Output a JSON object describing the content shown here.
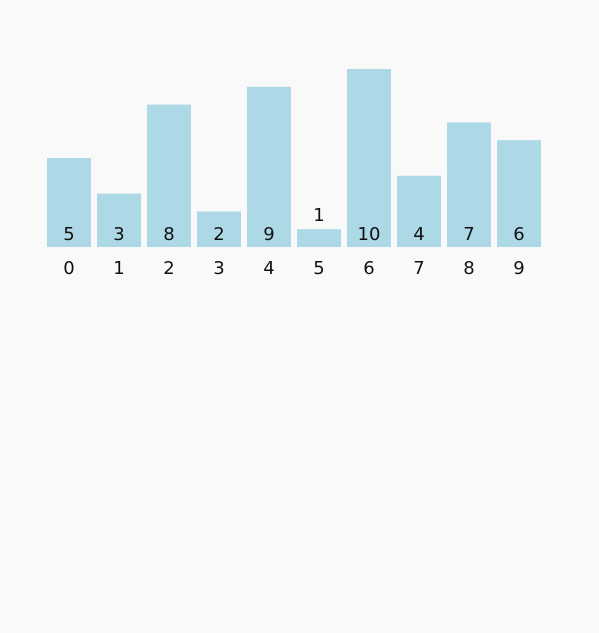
{
  "chart_data": {
    "type": "bar",
    "categories": [
      "0",
      "1",
      "2",
      "3",
      "4",
      "5",
      "6",
      "7",
      "8",
      "9"
    ],
    "values": [
      5,
      3,
      8,
      2,
      9,
      1,
      10,
      4,
      7,
      6
    ],
    "ylim": [
      0,
      10
    ],
    "bar_color": "#add8e6",
    "label_color": "#111111",
    "background": "#f9f9f9",
    "grid": false,
    "legend": "none",
    "xlabel": "",
    "ylabel": "",
    "title": ""
  }
}
